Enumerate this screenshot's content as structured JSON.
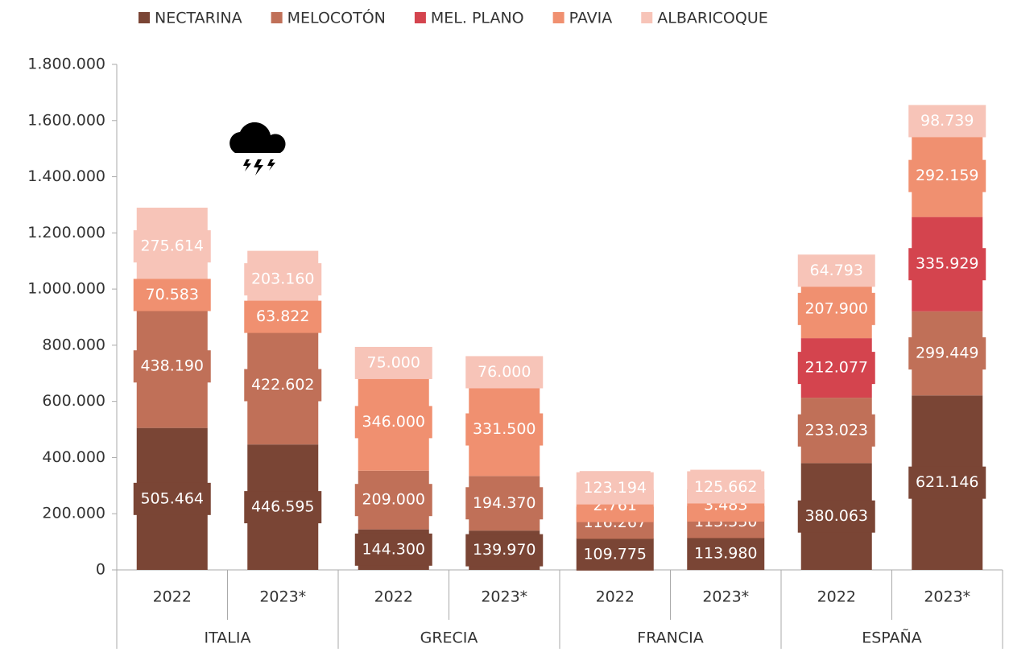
{
  "chart_data": {
    "type": "stacked_bar",
    "categories": [
      "2022",
      "2023*",
      "2022",
      "2023*",
      "2022",
      "2023*",
      "2022",
      "2023*"
    ],
    "groups": [
      "ITALIA",
      "GRECIA",
      "FRANCIA",
      "ESPAÑA"
    ],
    "series": [
      {
        "name": "NECTARINA",
        "color": "#7a4535",
        "values": [
          505464,
          446595,
          144300,
          139970,
          109775,
          113980,
          380063,
          621146
        ],
        "value_labels": [
          "505.464",
          "446.595",
          "144.300",
          "139.970",
          "109.775",
          "113.980",
          "380.063",
          "621.146"
        ]
      },
      {
        "name": "MELOCOTÓN",
        "color": "#c07058",
        "values": [
          438190,
          422602,
          209000,
          194370,
          116267,
          113550,
          233023,
          299449
        ],
        "value_labels": [
          "438.190",
          "422.602",
          "209.000",
          "194.370",
          "116.267",
          "113.550",
          "233.023",
          "299.449"
        ]
      },
      {
        "name": "MEL. PLANO",
        "color": "#d4444e",
        "values": [
          null,
          null,
          null,
          null,
          null,
          null,
          212077,
          335929
        ],
        "value_labels": [
          null,
          null,
          null,
          null,
          null,
          null,
          "212.077",
          "335.929"
        ]
      },
      {
        "name": "PAVIA",
        "color": "#f09070",
        "values": [
          70583,
          63822,
          346000,
          331500,
          2761,
          3483,
          207900,
          292159
        ],
        "value_labels": [
          "70.583",
          "63.822",
          "346.000",
          "331.500",
          "2.761",
          "3.483",
          "207.900",
          "292.159"
        ]
      },
      {
        "name": "ALBARICOQUE",
        "color": "#f7c4b8",
        "values": [
          275614,
          203160,
          75000,
          76000,
          123194,
          125662,
          64793,
          98739
        ],
        "value_labels": [
          "275.614",
          "203.160",
          "75.000",
          "76.000",
          "123.194",
          "125.662",
          "64.793",
          "98.739"
        ]
      }
    ],
    "ylim": [
      0,
      1800000
    ],
    "yticks": [
      0,
      {
        "value": 200000,
        "label": "200.000"
      },
      {
        "value": 400000,
        "label": "400.000"
      },
      {
        "value": 600000,
        "label": "600.000"
      },
      {
        "value": 800000,
        "label": "800.000"
      },
      {
        "value": 1000000,
        "label": "1.000.000"
      },
      {
        "value": 1200000,
        "label": "1.200.000"
      },
      {
        "value": 1400000,
        "label": "1.400.000"
      },
      {
        "value": 1600000,
        "label": "1.600.000"
      },
      {
        "value": 1800000,
        "label": "1.800.000"
      }
    ],
    "legend": "top"
  }
}
